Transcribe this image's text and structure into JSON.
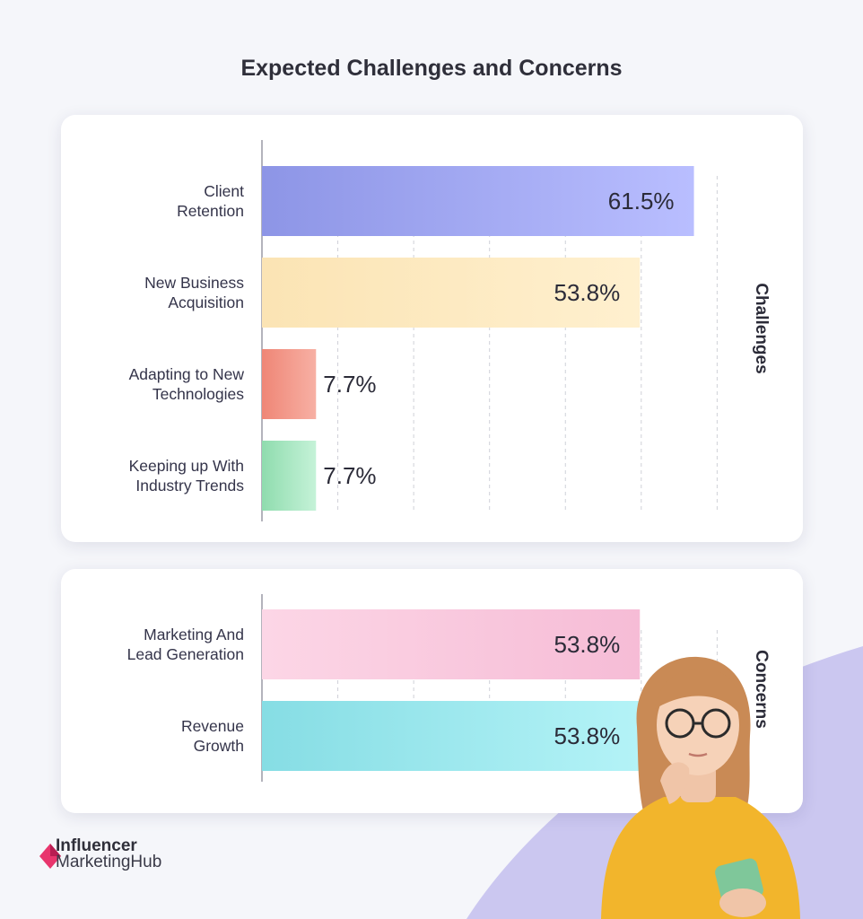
{
  "title": "Expected Challenges and Concerns",
  "colors": {
    "background": "#f5f6fa",
    "blob": "#c9c5ef",
    "logo_accent": "#e8356d"
  },
  "logo": {
    "line1": "Influencer",
    "line2": "MarketingHub",
    "icon": "diamond-logo-icon"
  },
  "chart_data": [
    {
      "type": "bar",
      "orientation": "horizontal",
      "section_label": "Challenges",
      "categories": [
        "Client\nRetention",
        "New Business\nAcquisition",
        "Adapting to New\nTechnologies",
        "Keeping up With\nIndustry Trends"
      ],
      "values": [
        61.5,
        53.8,
        7.7,
        7.7
      ],
      "value_labels": [
        "61.5%",
        "53.8%",
        "7.7%",
        "7.7%"
      ],
      "bar_colors": [
        [
          "#8d95e6",
          "#b9beff"
        ],
        [
          "#fbe4b4",
          "#fff0cf"
        ],
        [
          "#ef8676",
          "#f7b0a4"
        ],
        [
          "#8fdcae",
          "#c5f2d8"
        ]
      ],
      "xlim": [
        0,
        70
      ],
      "grid": "vertical-dashed"
    },
    {
      "type": "bar",
      "orientation": "horizontal",
      "section_label": "Concerns",
      "categories": [
        "Marketing And\nLead Generation",
        "Revenue\nGrowth"
      ],
      "values": [
        53.8,
        53.8
      ],
      "value_labels": [
        "53.8%",
        "53.8%"
      ],
      "bar_colors": [
        [
          "#fcd6e6",
          "#f6bcd6"
        ],
        [
          "#86dde4",
          "#b4f3f7"
        ]
      ],
      "xlim": [
        0,
        70
      ],
      "grid": "vertical-dashed"
    }
  ]
}
